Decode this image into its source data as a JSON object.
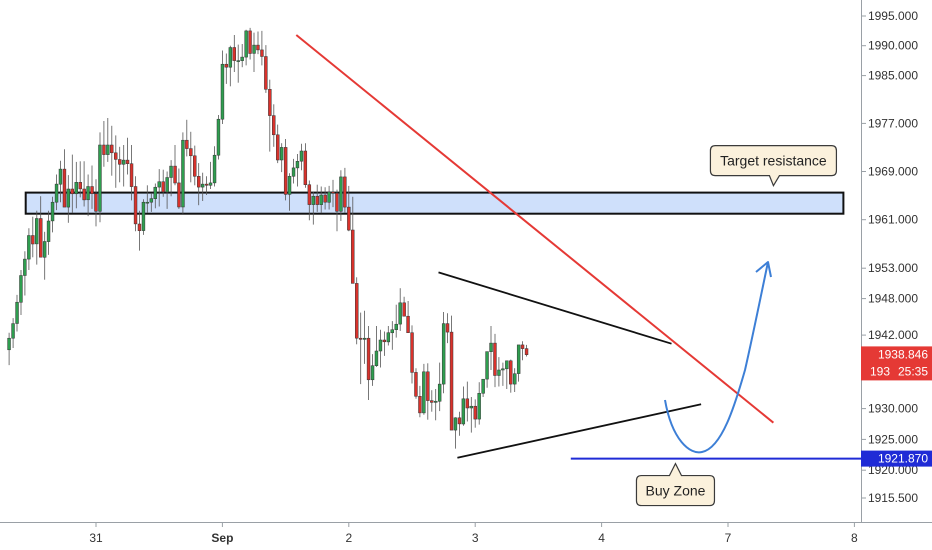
{
  "chart_data": {
    "type": "candlestick",
    "title": "",
    "xlabel": "",
    "ylabel": "",
    "ylim": [
      1910,
      1998
    ],
    "y_scale": "log",
    "y_ticks": [
      "1995.000",
      "1990.000",
      "1985.000",
      "1977.000",
      "1969.000",
      "1961.000",
      "1953.000",
      "1948.000",
      "1942.000",
      "1930.000",
      "1925.000",
      "1920.000",
      "1915.500"
    ],
    "y_tick_values": [
      1995,
      1990,
      1985,
      1977,
      1969,
      1961,
      1953,
      1948,
      1942,
      1930,
      1925,
      1920,
      1915.5
    ],
    "x_ticks": [
      {
        "label": "31",
        "bar": 22,
        "bold": false
      },
      {
        "label": "Sep",
        "bar": 54,
        "bold": true
      },
      {
        "label": "2",
        "bar": 86,
        "bold": false
      },
      {
        "label": "3",
        "bar": 118,
        "bold": false
      },
      {
        "label": "4",
        "bar": 150,
        "bold": false
      },
      {
        "label": "7",
        "bar": 182,
        "bold": false
      },
      {
        "label": "8",
        "bar": 214,
        "bold": false
      }
    ],
    "current_price": {
      "value": "1938.846",
      "countdown": "25:35",
      "visible_part": "193",
      "color": "#e53935"
    },
    "level_price": {
      "value": "1921.870",
      "color": "#1f2bd6"
    },
    "candles_ohlc": [
      [
        1939.6,
        1942.4,
        1937.1,
        1941.5
      ],
      [
        1941.5,
        1944.8,
        1939.9,
        1943.9
      ],
      [
        1943.9,
        1948.6,
        1942.6,
        1947.4
      ],
      [
        1947.4,
        1952.7,
        1945.3,
        1951.8
      ],
      [
        1951.8,
        1955.8,
        1948.5,
        1954.5
      ],
      [
        1954.5,
        1959.6,
        1952.7,
        1958.4
      ],
      [
        1958.4,
        1961.5,
        1954.8,
        1957.0
      ],
      [
        1957.0,
        1962.5,
        1953.6,
        1961.2
      ],
      [
        1961.2,
        1964.9,
        1956.2,
        1954.8
      ],
      [
        1954.8,
        1959.0,
        1951.1,
        1957.4
      ],
      [
        1957.4,
        1962.5,
        1955.2,
        1960.8
      ],
      [
        1960.8,
        1964.8,
        1958.9,
        1963.9
      ],
      [
        1963.9,
        1968.5,
        1962.6,
        1966.9
      ],
      [
        1966.9,
        1970.8,
        1963.9,
        1969.4
      ],
      [
        1969.4,
        1972.7,
        1964.4,
        1963.1
      ],
      [
        1963.1,
        1968.4,
        1960.5,
        1966.1
      ],
      [
        1966.1,
        1971.8,
        1962.1,
        1965.3
      ],
      [
        1965.3,
        1970.6,
        1962.9,
        1967.2
      ],
      [
        1967.2,
        1970.7,
        1964.7,
        1966.1
      ],
      [
        1966.1,
        1970.7,
        1963.2,
        1964.3
      ],
      [
        1964.3,
        1968.5,
        1961.6,
        1966.5
      ],
      [
        1966.5,
        1970.0,
        1962.8,
        1965.3
      ],
      [
        1965.3,
        1967.7,
        1959.9,
        1962.4
      ],
      [
        1962.4,
        1975.5,
        1960.6,
        1973.4
      ],
      [
        1973.4,
        1977.4,
        1969.8,
        1971.8
      ],
      [
        1971.8,
        1977.9,
        1970.6,
        1973.4
      ],
      [
        1973.4,
        1976.6,
        1968.3,
        1972.1
      ],
      [
        1972.1,
        1975.0,
        1966.3,
        1971.0
      ],
      [
        1971.0,
        1973.1,
        1967.2,
        1970.2
      ],
      [
        1970.2,
        1973.4,
        1966.5,
        1970.9
      ],
      [
        1970.9,
        1974.6,
        1968.5,
        1970.3
      ],
      [
        1970.3,
        1973.4,
        1964.2,
        1966.5
      ],
      [
        1966.5,
        1968.2,
        1959.1,
        1960.3
      ],
      [
        1960.3,
        1962.5,
        1955.9,
        1959.2
      ],
      [
        1959.2,
        1964.4,
        1958.5,
        1963.9
      ],
      [
        1963.9,
        1966.7,
        1962.2,
        1963.9
      ],
      [
        1963.9,
        1965.3,
        1962.3,
        1964.5
      ],
      [
        1964.5,
        1967.0,
        1962.9,
        1966.4
      ],
      [
        1966.4,
        1969.4,
        1963.2,
        1967.3
      ],
      [
        1967.3,
        1969.3,
        1964.8,
        1965.6
      ],
      [
        1965.6,
        1969.0,
        1962.8,
        1968.0
      ],
      [
        1968.0,
        1970.9,
        1964.9,
        1969.9
      ],
      [
        1969.9,
        1973.4,
        1966.7,
        1967.1
      ],
      [
        1967.1,
        1969.5,
        1962.8,
        1963.1
      ],
      [
        1963.1,
        1975.5,
        1962.0,
        1974.2
      ],
      [
        1974.2,
        1977.6,
        1971.5,
        1972.8
      ],
      [
        1972.8,
        1975.6,
        1967.2,
        1971.6
      ],
      [
        1971.6,
        1973.3,
        1966.7,
        1968.2
      ],
      [
        1968.2,
        1970.4,
        1963.4,
        1966.4
      ],
      [
        1966.4,
        1968.8,
        1964.1,
        1966.9
      ],
      [
        1966.9,
        1968.2,
        1965.1,
        1966.7
      ],
      [
        1966.7,
        1970.6,
        1966.1,
        1967.1
      ],
      [
        1967.1,
        1973.2,
        1966.5,
        1971.7
      ],
      [
        1971.7,
        1978.4,
        1971.0,
        1977.7
      ],
      [
        1977.7,
        1989.2,
        1976.9,
        1986.9
      ],
      [
        1986.9,
        1988.7,
        1983.6,
        1986.4
      ],
      [
        1986.4,
        1990.0,
        1983.2,
        1989.7
      ],
      [
        1989.7,
        1991.8,
        1985.6,
        1987.5
      ],
      [
        1987.5,
        1990.2,
        1983.8,
        1987.5
      ],
      [
        1987.5,
        1990.3,
        1986.4,
        1988.1
      ],
      [
        1988.1,
        1992.7,
        1986.7,
        1992.5
      ],
      [
        1992.5,
        1993.0,
        1987.7,
        1988.7
      ],
      [
        1988.7,
        1992.2,
        1985.6,
        1990.1
      ],
      [
        1990.1,
        1992.4,
        1988.6,
        1989.3
      ],
      [
        1989.3,
        1992.5,
        1986.7,
        1988.2
      ],
      [
        1988.2,
        1990.1,
        1982.1,
        1982.7
      ],
      [
        1982.7,
        1984.3,
        1972.3,
        1978.3
      ],
      [
        1978.3,
        1980.2,
        1973.1,
        1975.1
      ],
      [
        1975.1,
        1976.8,
        1970.4,
        1970.9
      ],
      [
        1970.9,
        1973.7,
        1968.9,
        1973.0
      ],
      [
        1973.0,
        1974.4,
        1964.2,
        1965.2
      ],
      [
        1965.2,
        1968.7,
        1962.5,
        1968.2
      ],
      [
        1968.2,
        1971.1,
        1967.0,
        1969.6
      ],
      [
        1969.6,
        1971.9,
        1966.5,
        1970.7
      ],
      [
        1970.7,
        1973.6,
        1969.2,
        1972.4
      ],
      [
        1972.4,
        1973.7,
        1966.3,
        1966.8
      ],
      [
        1966.8,
        1967.5,
        1960.9,
        1963.5
      ],
      [
        1963.5,
        1965.6,
        1960.2,
        1964.9
      ],
      [
        1964.9,
        1966.8,
        1962.3,
        1963.5
      ],
      [
        1963.5,
        1966.5,
        1962.1,
        1965.1
      ],
      [
        1965.1,
        1966.4,
        1962.7,
        1963.9
      ],
      [
        1963.9,
        1966.6,
        1962.7,
        1965.6
      ],
      [
        1965.6,
        1967.6,
        1963.1,
        1965.4
      ],
      [
        1965.4,
        1966.0,
        1959.1,
        1962.4
      ],
      [
        1962.4,
        1969.2,
        1960.8,
        1968.1
      ],
      [
        1968.1,
        1969.6,
        1962.2,
        1963.1
      ],
      [
        1963.1,
        1966.6,
        1959.1,
        1959.3
      ],
      [
        1959.3,
        1964.8,
        1951.6,
        1950.5
      ],
      [
        1950.5,
        1951.5,
        1940.5,
        1941.5
      ],
      [
        1941.5,
        1945.7,
        1934.0,
        1941.3
      ],
      [
        1941.3,
        1946.0,
        1937.3,
        1941.5
      ],
      [
        1941.5,
        1943.5,
        1931.4,
        1934.7
      ],
      [
        1934.7,
        1938.9,
        1933.7,
        1937.0
      ],
      [
        1937.0,
        1943.5,
        1936.8,
        1939.4
      ],
      [
        1939.4,
        1942.9,
        1936.7,
        1941.2
      ],
      [
        1941.2,
        1942.6,
        1938.6,
        1940.9
      ],
      [
        1940.9,
        1943.5,
        1940.3,
        1942.4
      ],
      [
        1942.4,
        1944.3,
        1939.6,
        1942.9
      ],
      [
        1942.9,
        1947.0,
        1941.6,
        1943.8
      ],
      [
        1943.8,
        1949.7,
        1942.7,
        1947.3
      ],
      [
        1947.3,
        1948.3,
        1945.6,
        1945.1
      ],
      [
        1945.1,
        1947.6,
        1944.5,
        1942.4
      ],
      [
        1942.4,
        1943.6,
        1934.1,
        1935.9
      ],
      [
        1935.9,
        1936.6,
        1931.6,
        1932.0
      ],
      [
        1932.0,
        1933.7,
        1928.6,
        1929.3
      ],
      [
        1929.3,
        1937.3,
        1929.0,
        1936.0
      ],
      [
        1936.0,
        1937.4,
        1928.2,
        1931.3
      ],
      [
        1931.3,
        1933.0,
        1929.5,
        1931.0
      ],
      [
        1931.0,
        1933.2,
        1928.1,
        1931.2
      ],
      [
        1931.2,
        1937.5,
        1929.6,
        1934.0
      ],
      [
        1934.0,
        1945.8,
        1932.5,
        1943.9
      ],
      [
        1943.9,
        1945.6,
        1940.7,
        1942.5
      ],
      [
        1942.5,
        1945.2,
        1928.1,
        1926.5
      ],
      [
        1926.5,
        1928.6,
        1923.5,
        1928.5
      ],
      [
        1928.5,
        1929.5,
        1925.6,
        1927.5
      ],
      [
        1927.5,
        1933.6,
        1927.2,
        1931.6
      ],
      [
        1931.6,
        1934.4,
        1927.9,
        1930.1
      ],
      [
        1930.1,
        1931.9,
        1926.1,
        1930.4
      ],
      [
        1930.4,
        1931.5,
        1926.9,
        1928.3
      ],
      [
        1928.3,
        1934.3,
        1927.4,
        1932.5
      ],
      [
        1932.5,
        1934.3,
        1931.9,
        1934.8
      ],
      [
        1934.8,
        1937.1,
        1933.4,
        1939.3
      ],
      [
        1939.3,
        1943.5,
        1936.3,
        1940.7
      ],
      [
        1940.7,
        1942.2,
        1933.5,
        1935.4
      ],
      [
        1935.4,
        1938.4,
        1933.6,
        1936.3
      ],
      [
        1936.3,
        1937.5,
        1933.7,
        1936.5
      ],
      [
        1936.5,
        1937.3,
        1933.2,
        1937.8
      ],
      [
        1937.8,
        1938.0,
        1932.6,
        1934.0
      ],
      [
        1934.0,
        1936.6,
        1932.7,
        1935.7
      ],
      [
        1935.7,
        1940.1,
        1934.4,
        1940.4
      ],
      [
        1940.4,
        1941.0,
        1937.9,
        1939.8
      ],
      [
        1939.8,
        1940.4,
        1938.5,
        1938.8
      ]
    ],
    "drawings": {
      "resistance_zone": {
        "top": 1965.5,
        "bottom": 1962.0,
        "bar_start": 4.2,
        "bar_end": 211.2,
        "fill": "#cfe0fb"
      },
      "downtrend_line": {
        "start_bar": 72.7,
        "start_value": 1991.8,
        "end_bar": 193.5,
        "end_value": 1927.7,
        "color": "#e53935"
      },
      "triangle_upper": {
        "start_bar": 108.7,
        "start_value": 1952.3,
        "end_bar": 167.7,
        "end_value": 1940.6,
        "color": "#111111"
      },
      "triangle_lower": {
        "start_bar": 113.5,
        "start_value": 1922.0,
        "end_bar": 175.2,
        "end_value": 1930.7,
        "color": "#111111"
      },
      "level_line": {
        "start_bar": 142.2,
        "value": 1921.87,
        "color": "#1f2bd6"
      },
      "projection_path": {
        "color": "#3d7fd6"
      }
    },
    "annotations": [
      {
        "text": "Target resistance",
        "bar": 193.5,
        "value": 1970.8
      },
      {
        "text": "Buy Zone",
        "bar": 168.7,
        "value": 1916.7
      }
    ]
  }
}
